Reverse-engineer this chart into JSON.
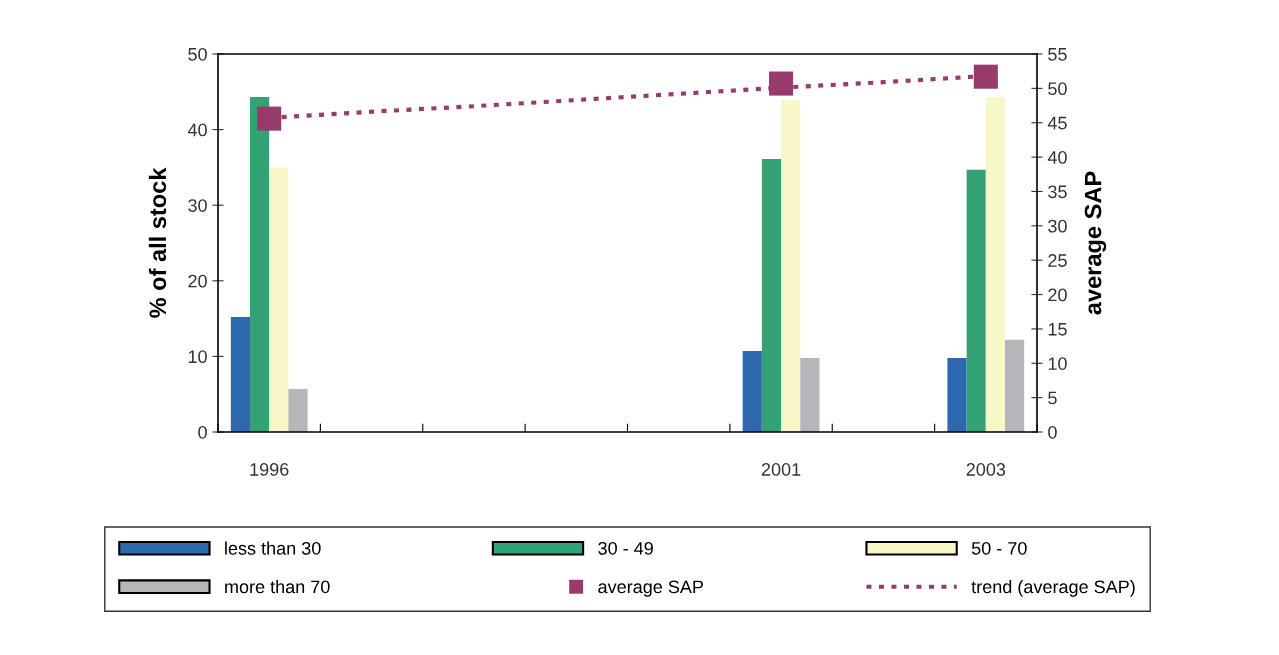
{
  "chart_data": {
    "type": "bar",
    "ylabel": "% of all stock",
    "y2label": "average SAP",
    "categories": [
      "1996",
      null,
      null,
      null,
      null,
      "2001",
      null,
      "2003"
    ],
    "series": [
      {
        "name": "less than 30",
        "color": "#2e69b0",
        "values": [
          15.2,
          null,
          null,
          null,
          null,
          10.7,
          null,
          9.8
        ]
      },
      {
        "name": "30 - 49",
        "color": "#33a275",
        "values": [
          44.3,
          null,
          null,
          null,
          null,
          36.1,
          null,
          34.7
        ]
      },
      {
        "name": "50 - 70",
        "color": "#f8f7c8",
        "values": [
          35.0,
          null,
          null,
          null,
          null,
          43.9,
          null,
          44.3
        ]
      },
      {
        "name": "more than 70",
        "color": "#b5b6b9",
        "values": [
          5.7,
          null,
          null,
          null,
          null,
          9.8,
          null,
          12.2
        ]
      },
      {
        "name": "average SAP",
        "type": "scatter",
        "axis": "y2",
        "marker": "square",
        "color": "#973a6c",
        "values": [
          45.6,
          null,
          null,
          null,
          null,
          50.7,
          null,
          51.7
        ]
      },
      {
        "name": "trend (average SAP)",
        "type": "line",
        "axis": "y2",
        "line_style": "dotted",
        "color": "#973a6c",
        "values": [
          45.7,
          46.6,
          47.4,
          48.3,
          49.2,
          50.1,
          50.9,
          51.8
        ]
      }
    ],
    "ylim": [
      0,
      50
    ],
    "yticks": [
      0,
      10,
      20,
      30,
      40,
      50
    ],
    "y2lim": [
      0,
      55
    ],
    "y2ticks": [
      0,
      5,
      10,
      15,
      20,
      25,
      30,
      35,
      40,
      45,
      50,
      55
    ],
    "grid": false,
    "legend": "bottom"
  }
}
